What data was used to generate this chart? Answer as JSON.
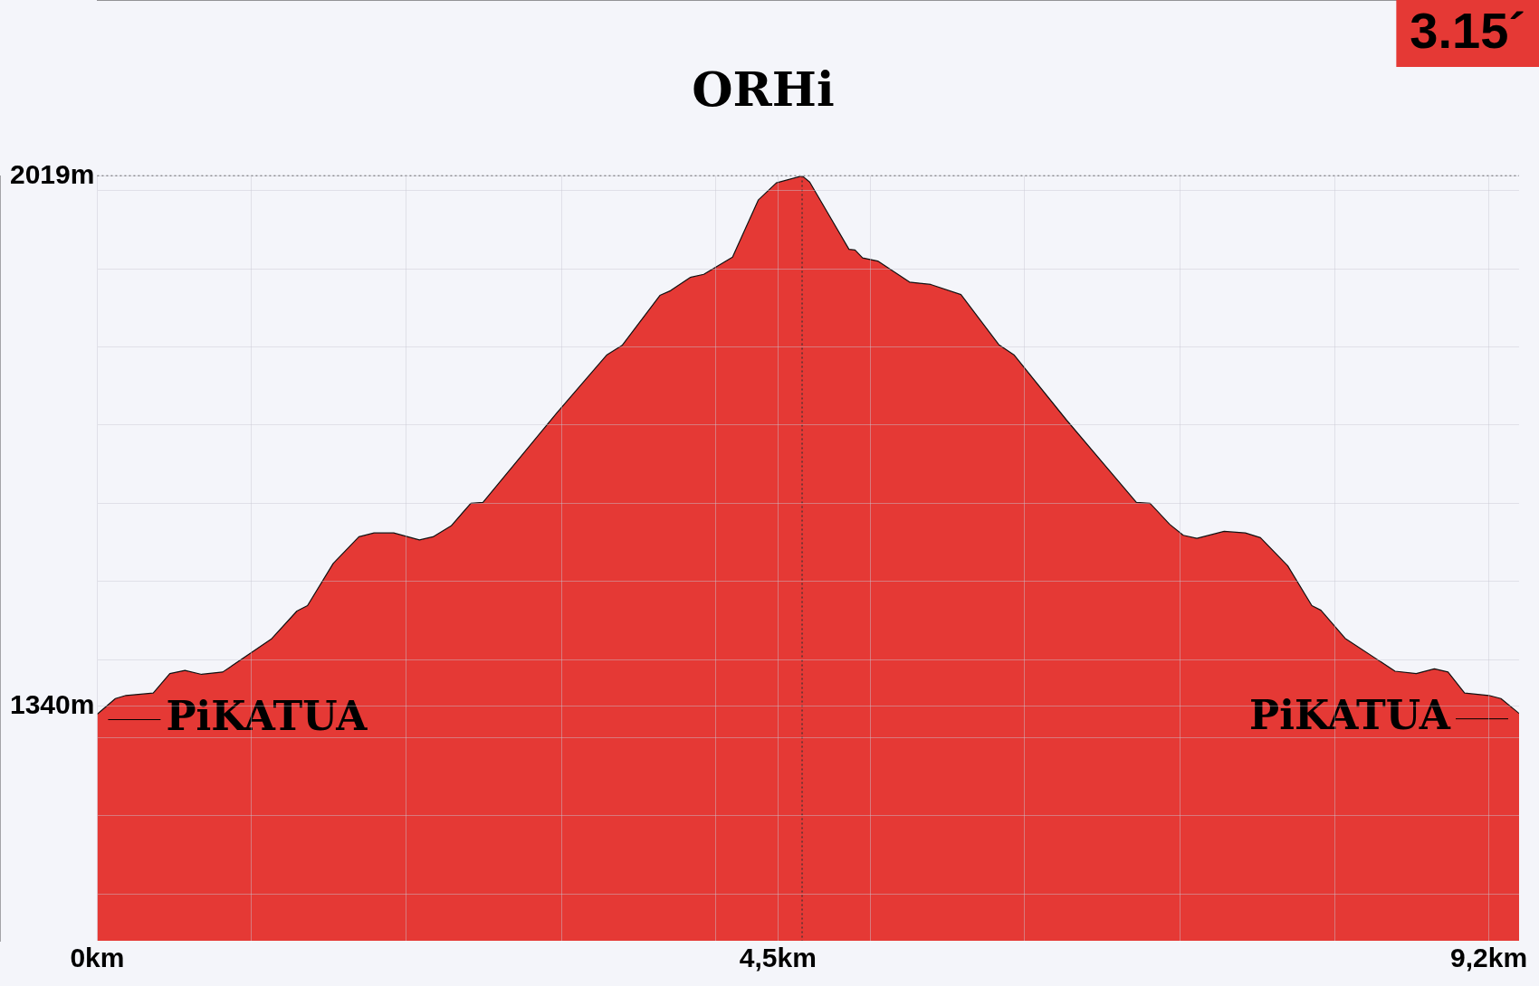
{
  "chart_data": {
    "type": "area",
    "title": "ORHi",
    "x": [
      0,
      0.12,
      0.19,
      0.37,
      0.48,
      0.58,
      0.69,
      0.83,
      1.15,
      1.32,
      1.39,
      1.56,
      1.73,
      1.83,
      1.96,
      2.13,
      2.22,
      2.34,
      2.47,
      2.55,
      3.04,
      3.37,
      3.47,
      3.72,
      3.79,
      3.92,
      4.01,
      4.2,
      4.37,
      4.49,
      4.66,
      4.71,
      4.97,
      5.01,
      5.06,
      5.16,
      5.37,
      5.51,
      5.71,
      5.96,
      6.06,
      6.41,
      6.87,
      6.96,
      7.09,
      7.18,
      7.27,
      7.45,
      7.59,
      7.69,
      7.87,
      8.03,
      8.09,
      8.25,
      8.58,
      8.72,
      8.84,
      8.93,
      9.04,
      9.2,
      9.28,
      9.4
    ],
    "series": [
      {
        "color": "#e53935",
        "values": [
          1330,
          1350,
          1354,
          1357,
          1382,
          1386,
          1381,
          1384,
          1426,
          1462,
          1469,
          1523,
          1557,
          1562,
          1562,
          1553,
          1557,
          1571,
          1600,
          1601,
          1716,
          1790,
          1802,
          1866,
          1872,
          1889,
          1893,
          1915,
          1988,
          2010,
          2019,
          2011,
          1925,
          1924,
          1914,
          1910,
          1883,
          1880,
          1867,
          1803,
          1790,
          1706,
          1601,
          1600,
          1573,
          1559,
          1555,
          1564,
          1562,
          1556,
          1520,
          1469,
          1463,
          1427,
          1385,
          1382,
          1388,
          1384,
          1357,
          1354,
          1350,
          1331
        ]
      }
    ],
    "xlim": [
      0,
      9.4
    ],
    "xticks": [
      {
        "value": 0,
        "label": "0km"
      },
      {
        "value": 1.02,
        "label": null
      },
      {
        "value": 2.04,
        "label": null
      },
      {
        "value": 3.07,
        "label": null
      },
      {
        "value": 4.09,
        "label": null
      },
      {
        "value": 4.5,
        "label": "4,5km"
      },
      {
        "value": 5.11,
        "label": null
      },
      {
        "value": 6.13,
        "label": null
      },
      {
        "value": 7.16,
        "label": null
      },
      {
        "value": 8.18,
        "label": null
      },
      {
        "value": 9.2,
        "label": "9,2km"
      }
    ],
    "ylim": [
      1040,
      2019
    ],
    "yticks": [
      {
        "value": 1100,
        "label": null
      },
      {
        "value": 1200,
        "label": null
      },
      {
        "value": 1300,
        "label": null
      },
      {
        "value": 1340,
        "label": "1340m"
      },
      {
        "value": 1400,
        "label": null
      },
      {
        "value": 1500,
        "label": null
      },
      {
        "value": 1600,
        "label": null
      },
      {
        "value": 1700,
        "label": null
      },
      {
        "value": 1800,
        "label": null
      },
      {
        "value": 1900,
        "label": null
      },
      {
        "value": 2000,
        "label": null
      },
      {
        "value": 2019,
        "label": "2019m"
      }
    ],
    "grid": true,
    "ref_lines": [
      {
        "axis": "y",
        "value": 2019,
        "line_style": "dotted",
        "color": "#555555"
      },
      {
        "axis": "x",
        "value": 4.66,
        "line_style": "dotted",
        "color": "#333333"
      }
    ],
    "annotations": [
      "3.15´",
      {
        "text": "PiKATUA",
        "x": 0,
        "y": 1330
      },
      {
        "text": "PiKATUA",
        "x": 9.4,
        "y": 1331
      }
    ]
  }
}
